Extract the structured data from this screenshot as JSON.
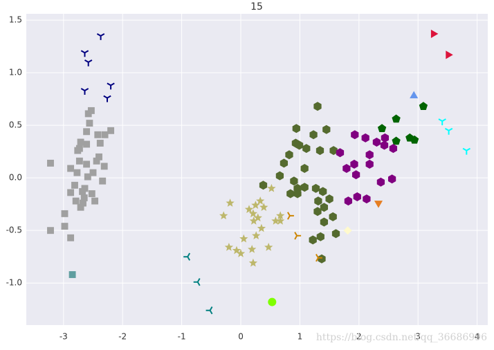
{
  "chart_data": {
    "type": "scatter",
    "title": "15",
    "watermark": "https://blog.csdn.net/qq_36686996",
    "xlim": [
      -3.63,
      4.18
    ],
    "ylim": [
      -1.4,
      1.56
    ],
    "xticks": [
      -3,
      -2,
      -1,
      0,
      1,
      2,
      3,
      4
    ],
    "yticks": [
      1.5,
      {
        "value": 1.0,
        "label": "1.0"
      },
      0.5,
      {
        "value": 0.0,
        "label": "0.0"
      },
      -0.5,
      {
        "value": -1.0,
        "label": "-1.0"
      }
    ],
    "grid": true,
    "background": "#eaeaf2",
    "series": [
      {
        "color": "#a0a0a0",
        "marker": "square",
        "x": [
          -3.22,
          -3.22,
          -2.98,
          -2.98,
          -2.88,
          -2.88,
          -2.88,
          -2.81,
          -2.79,
          -2.77,
          -2.73,
          -2.73,
          -2.71,
          -2.68,
          -2.67,
          -2.65,
          -2.64,
          -2.61,
          -2.61,
          -2.61,
          -2.59,
          -2.58,
          -2.56,
          -2.53,
          -2.52,
          -2.5,
          -2.47,
          -2.44,
          -2.42,
          -2.4,
          -2.38,
          -2.34,
          -2.31,
          -2.3,
          -2.2,
          -2.71,
          -2.76
        ],
        "y": [
          0.14,
          -0.5,
          -0.34,
          -0.46,
          -0.57,
          0.09,
          -0.14,
          -0.07,
          -0.22,
          0.05,
          0.16,
          0.28,
          0.34,
          -0.13,
          -0.24,
          -0.19,
          -0.1,
          0.13,
          0.32,
          0.44,
          0.01,
          0.61,
          0.52,
          0.64,
          -0.15,
          0.05,
          -0.22,
          0.16,
          0.41,
          0.2,
          0.33,
          -0.03,
          0.11,
          0.41,
          0.45,
          -0.28,
          0.26
        ]
      },
      {
        "color": "#5f9ea0",
        "marker": "square",
        "x": [
          -2.85
        ],
        "y": [
          -0.92
        ]
      },
      {
        "color": "#000080",
        "marker": "tri_down",
        "x": [
          -2.37,
          -2.64,
          -2.58,
          -2.64,
          -2.2,
          -2.26
        ],
        "y": [
          1.35,
          1.19,
          1.1,
          0.83,
          0.88,
          0.76
        ]
      },
      {
        "color": "#556b2f",
        "marker": "hexagon",
        "x": [
          1.3,
          0.94,
          1.23,
          1.45,
          0.93,
          0.99,
          1.11,
          1.34,
          1.57,
          0.82,
          0.73,
          1.08,
          0.66,
          0.9,
          0.38,
          0.96,
          1.08,
          1.27,
          0.84,
          0.96,
          1.39,
          1.31,
          1.41,
          1.5,
          1.3,
          1.56,
          1.41,
          1.61,
          1.22,
          1.35,
          1.37
        ],
        "y": [
          0.68,
          0.47,
          0.41,
          0.46,
          0.33,
          0.31,
          0.28,
          0.26,
          0.26,
          0.22,
          0.14,
          0.09,
          0.02,
          -0.03,
          -0.07,
          -0.1,
          -0.09,
          -0.1,
          -0.15,
          -0.15,
          -0.13,
          -0.22,
          -0.28,
          -0.2,
          -0.32,
          -0.37,
          -0.42,
          -0.53,
          -0.59,
          -0.56,
          -0.77
        ]
      },
      {
        "color": "#006400",
        "marker": "pentagon",
        "x": [
          2.39,
          2.63,
          2.63,
          2.86,
          2.94,
          3.09
        ],
        "y": [
          0.47,
          0.56,
          0.35,
          0.38,
          0.36,
          0.68
        ]
      },
      {
        "color": "#800080",
        "marker": "hexagon",
        "x": [
          1.93,
          2.11,
          2.3,
          2.44,
          2.43,
          2.58,
          1.68,
          2.18,
          1.79,
          1.92,
          1.95,
          2.18,
          2.37,
          2.56,
          1.97,
          2.13,
          1.82
        ],
        "y": [
          0.41,
          0.38,
          0.34,
          0.38,
          0.31,
          0.28,
          0.24,
          0.22,
          0.09,
          0.13,
          0.03,
          0.13,
          -0.04,
          -0.01,
          -0.18,
          -0.2,
          -0.22
        ]
      },
      {
        "color": "#bdb76b",
        "marker": "star",
        "x": [
          -0.18,
          -0.29,
          0.52,
          0.33,
          0.14,
          0.25,
          0.39,
          0.21,
          0.29,
          0.67,
          0.59,
          0.35,
          0.22,
          0.05,
          0.26,
          -0.2,
          -0.07,
          0.0,
          0.19,
          0.47,
          0.21,
          0.67
        ],
        "y": [
          -0.24,
          -0.36,
          -0.1,
          -0.22,
          -0.3,
          -0.26,
          -0.28,
          -0.34,
          -0.38,
          -0.36,
          -0.41,
          -0.48,
          -0.41,
          -0.58,
          -0.55,
          -0.66,
          -0.69,
          -0.72,
          -0.68,
          -0.66,
          -0.81,
          -0.41
        ]
      },
      {
        "color": "#cd8500",
        "marker": "tri_right",
        "x": [
          0.83,
          0.95,
          1.31
        ],
        "y": [
          -0.36,
          -0.55,
          -0.76
        ]
      },
      {
        "color": "#008080",
        "marker": "tri_left",
        "x": [
          -0.9,
          -0.73,
          -0.52
        ],
        "y": [
          -0.75,
          -0.99,
          -1.26
        ]
      },
      {
        "color": "#7fff00",
        "marker": "circle",
        "x": [
          0.53
        ],
        "y": [
          -1.18
        ]
      },
      {
        "color": "#fffacd",
        "marker": "diamond",
        "x": [
          1.81
        ],
        "y": [
          -0.5
        ]
      },
      {
        "color": "#e67e22",
        "marker": "triangle_down",
        "x": [
          2.33
        ],
        "y": [
          -0.24
        ]
      },
      {
        "color": "#6495ed",
        "marker": "triangle_up",
        "x": [
          2.93
        ],
        "y": [
          0.78
        ]
      },
      {
        "color": "#00ffff",
        "marker": "tri_down",
        "x": [
          3.41,
          3.52,
          3.82
        ],
        "y": [
          0.54,
          0.45,
          0.26
        ]
      },
      {
        "color": "#dc143c",
        "marker": "triangle_right",
        "x": [
          3.26,
          3.51
        ],
        "y": [
          1.37,
          1.17
        ]
      }
    ]
  }
}
